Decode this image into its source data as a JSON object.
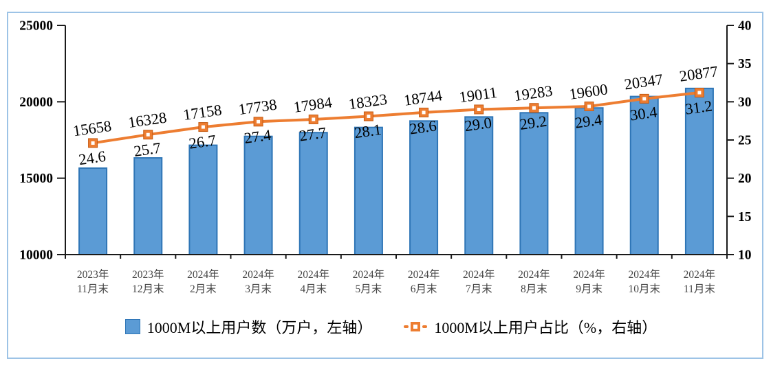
{
  "figure": {
    "border_color": "#9DC3E6",
    "background": "#FFFFFF"
  },
  "chart_data": {
    "type": "bar+line combo",
    "title": "",
    "categories": [
      [
        "2023年",
        "11月末"
      ],
      [
        "2023年",
        "12月末"
      ],
      [
        "2024年",
        "2月末"
      ],
      [
        "2024年",
        "3月末"
      ],
      [
        "2024年",
        "4月末"
      ],
      [
        "2024年",
        "5月末"
      ],
      [
        "2024年",
        "6月末"
      ],
      [
        "2024年",
        "7月末"
      ],
      [
        "2024年",
        "8月末"
      ],
      [
        "2024年",
        "9月末"
      ],
      [
        "2024年",
        "10月末"
      ],
      [
        "2024年",
        "11月末"
      ]
    ],
    "series": [
      {
        "name": "1000M以上用户数（万户，左轴）",
        "type": "bar",
        "axis": "left",
        "values": [
          15658,
          16328,
          17158,
          17738,
          17984,
          18323,
          18744,
          19011,
          19283,
          19600,
          20347,
          20877
        ],
        "labels": [
          "15658",
          "16328",
          "17158",
          "17738",
          "17984",
          "18323",
          "18744",
          "19011",
          "19283",
          "19600",
          "20347",
          "20877"
        ],
        "color": "#5B9BD5",
        "border_color": "#2E75B6"
      },
      {
        "name": "1000M以上用户占比（%，右轴）",
        "type": "line",
        "axis": "right",
        "values": [
          24.6,
          25.7,
          26.7,
          27.4,
          27.7,
          28.1,
          28.6,
          29.0,
          29.2,
          29.4,
          30.4,
          31.2
        ],
        "labels": [
          "24.6",
          "25.7",
          "26.7",
          "27.4",
          "27.7",
          "28.1",
          "28.6",
          "29.0",
          "29.2",
          "29.4",
          "30.4",
          "31.2"
        ],
        "color": "#ED7D31",
        "marker_edge_color": "#C55A11",
        "marker_center_color": "#FFFFFF"
      }
    ],
    "left_axis": {
      "min": 10000,
      "max": 25000,
      "tick_interval": 5000,
      "ticks": [
        "25000",
        "20000",
        "15000",
        "10000"
      ]
    },
    "right_axis": {
      "min": 10,
      "max": 40,
      "tick_interval": 5,
      "ticks": [
        "40",
        "35",
        "30",
        "25",
        "20",
        "15",
        "10"
      ]
    },
    "grid": "off",
    "legend_position": "bottom",
    "axis_color": "#1a1a1a",
    "tick_label_color": "#000000",
    "category_label_color": "#454545",
    "data_label_color": "#000000"
  }
}
